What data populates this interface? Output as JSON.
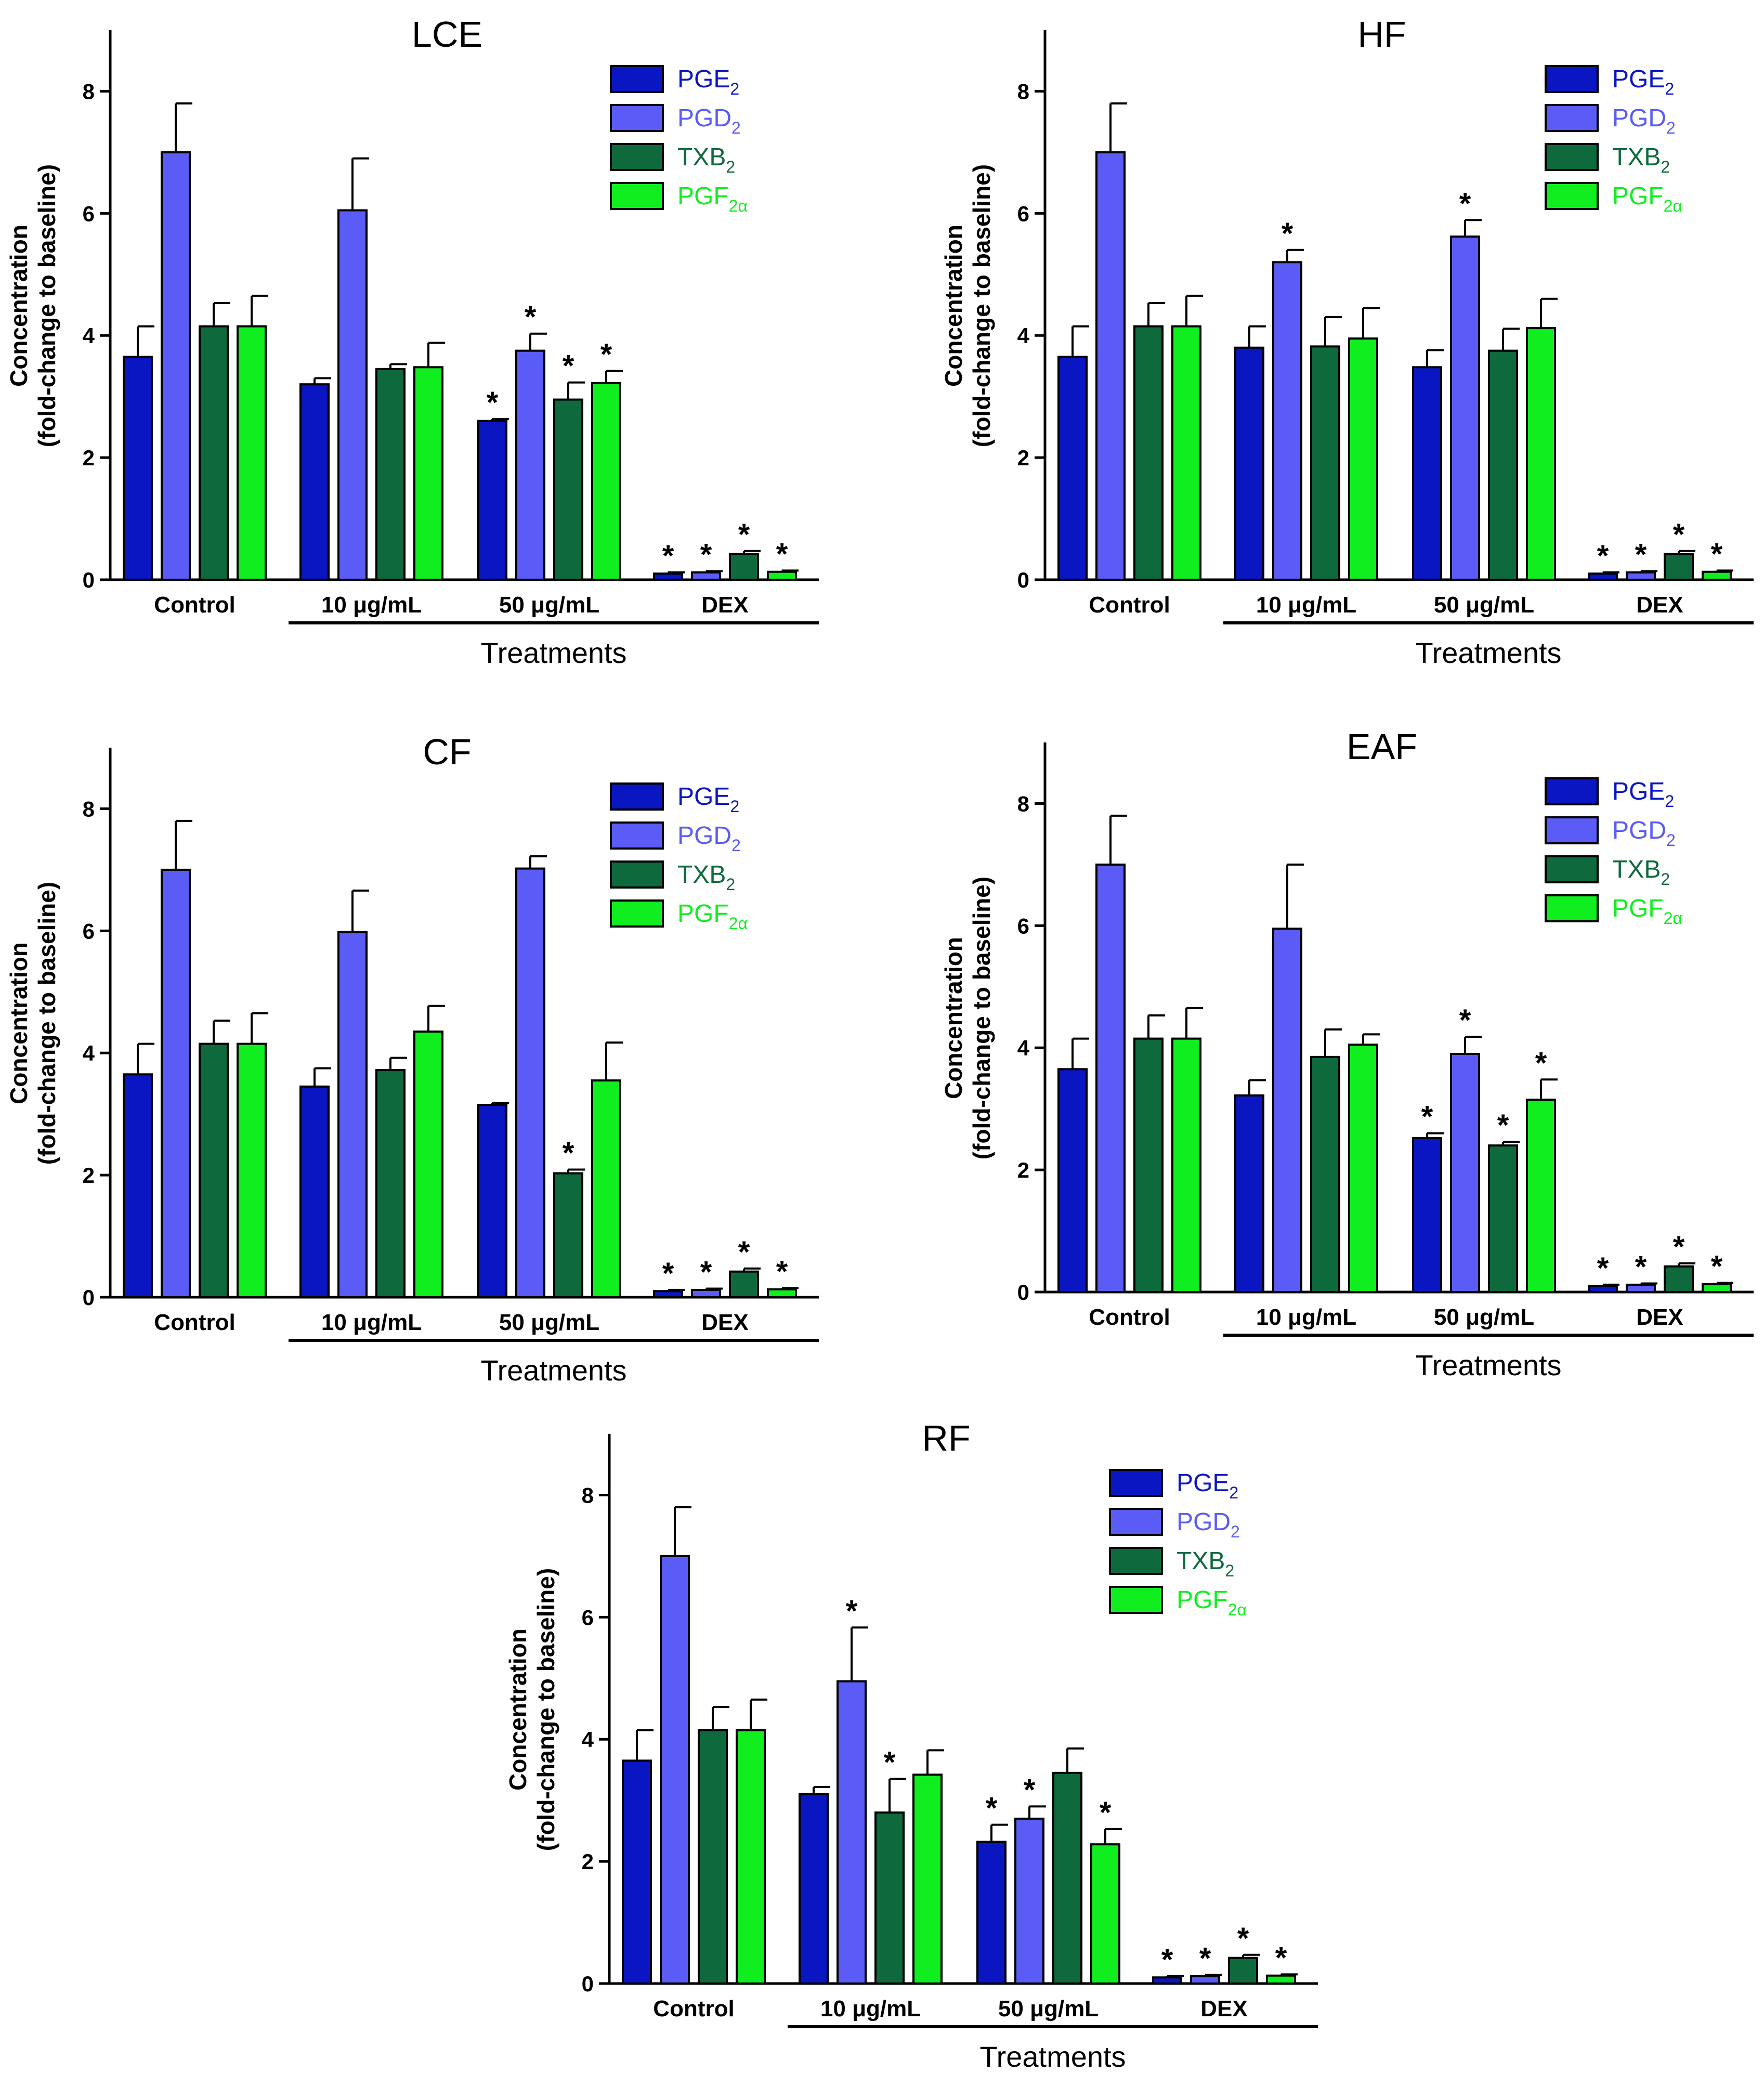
{
  "colors": {
    "PGE2": "#0a16c2",
    "PGD2": "#5a5cf5",
    "TXB2": "#0e6a3c",
    "PGF2a": "#11ee1f",
    "axis": "#000000"
  },
  "legend_entries": [
    {
      "base": "PGE",
      "sub": "2",
      "color_key": "PGE2"
    },
    {
      "base": "PGD",
      "sub": "2",
      "color_key": "PGD2"
    },
    {
      "base": "TXB",
      "sub": "2",
      "color_key": "TXB2"
    },
    {
      "base": "PGF",
      "sub": "2α",
      "color_key": "PGF2a"
    }
  ],
  "chart_data": [
    {
      "type": "bar",
      "title": "LCE",
      "categories": [
        "Control",
        "10 μg/mL",
        "50 μg/mL",
        "DEX"
      ],
      "xlabel": "Treatments",
      "ylabel": [
        "Concentration",
        "(fold-change to baseline)"
      ],
      "ylim": [
        0,
        9
      ],
      "yticks": [
        0,
        2,
        4,
        6,
        8
      ],
      "series": [
        {
          "name": "PGE2",
          "values": [
            3.65,
            3.2,
            2.6,
            0.1
          ],
          "errors": [
            0.5,
            0.1,
            0.03,
            0.02
          ],
          "significant": [
            false,
            false,
            true,
            true
          ]
        },
        {
          "name": "PGD2",
          "values": [
            7.0,
            6.05,
            3.75,
            0.12
          ],
          "errors": [
            0.8,
            0.85,
            0.28,
            0.02
          ],
          "significant": [
            false,
            false,
            true,
            true
          ]
        },
        {
          "name": "TXB2",
          "values": [
            4.15,
            3.45,
            2.95,
            0.42
          ],
          "errors": [
            0.38,
            0.08,
            0.28,
            0.05
          ],
          "significant": [
            false,
            false,
            true,
            true
          ]
        },
        {
          "name": "PGF2α",
          "values": [
            4.15,
            3.48,
            3.22,
            0.13
          ],
          "errors": [
            0.5,
            0.4,
            0.2,
            0.02
          ],
          "significant": [
            false,
            false,
            true,
            true
          ]
        }
      ]
    },
    {
      "type": "bar",
      "title": "HF",
      "categories": [
        "Control",
        "10 μg/mL",
        "50 μg/mL",
        "DEX"
      ],
      "xlabel": "Treatments",
      "ylabel": [
        "Concentration",
        "(fold-change to baseline)"
      ],
      "ylim": [
        0,
        9
      ],
      "yticks": [
        0,
        2,
        4,
        6,
        8
      ],
      "series": [
        {
          "name": "PGE2",
          "values": [
            3.65,
            3.8,
            3.48,
            0.1
          ],
          "errors": [
            0.5,
            0.35,
            0.28,
            0.02
          ],
          "significant": [
            false,
            false,
            false,
            true
          ]
        },
        {
          "name": "PGD2",
          "values": [
            7.0,
            5.2,
            5.62,
            0.12
          ],
          "errors": [
            0.8,
            0.2,
            0.27,
            0.02
          ],
          "significant": [
            false,
            true,
            true,
            true
          ]
        },
        {
          "name": "TXB2",
          "values": [
            4.15,
            3.82,
            3.75,
            0.42
          ],
          "errors": [
            0.38,
            0.48,
            0.36,
            0.05
          ],
          "significant": [
            false,
            false,
            false,
            true
          ]
        },
        {
          "name": "PGF2α",
          "values": [
            4.15,
            3.95,
            4.12,
            0.13
          ],
          "errors": [
            0.5,
            0.5,
            0.48,
            0.02
          ],
          "significant": [
            false,
            false,
            false,
            true
          ]
        }
      ]
    },
    {
      "type": "bar",
      "title": "CF",
      "categories": [
        "Control",
        "10 μg/mL",
        "50 μg/mL",
        "DEX"
      ],
      "xlabel": "Treatments",
      "ylabel": [
        "Concentration",
        "(fold-change to baseline)"
      ],
      "ylim": [
        0,
        9
      ],
      "yticks": [
        0,
        2,
        4,
        6,
        8
      ],
      "series": [
        {
          "name": "PGE2",
          "values": [
            3.65,
            3.45,
            3.15,
            0.1
          ],
          "errors": [
            0.5,
            0.3,
            0.03,
            0.02
          ],
          "significant": [
            false,
            false,
            false,
            true
          ]
        },
        {
          "name": "PGD2",
          "values": [
            7.0,
            5.98,
            7.02,
            0.12
          ],
          "errors": [
            0.8,
            0.68,
            0.2,
            0.02
          ],
          "significant": [
            false,
            false,
            false,
            true
          ]
        },
        {
          "name": "TXB2",
          "values": [
            4.15,
            3.72,
            2.03,
            0.42
          ],
          "errors": [
            0.38,
            0.2,
            0.06,
            0.05
          ],
          "significant": [
            false,
            false,
            true,
            true
          ]
        },
        {
          "name": "PGF2α",
          "values": [
            4.15,
            4.35,
            3.55,
            0.13
          ],
          "errors": [
            0.5,
            0.42,
            0.62,
            0.02
          ],
          "significant": [
            false,
            false,
            false,
            true
          ]
        }
      ]
    },
    {
      "type": "bar",
      "title": "EAF",
      "categories": [
        "Control",
        "10 μg/mL",
        "50 μg/mL",
        "DEX"
      ],
      "xlabel": "Treatments",
      "ylabel": [
        "Concentration",
        "(fold-change to baseline)"
      ],
      "ylim": [
        0,
        9
      ],
      "yticks": [
        0,
        2,
        4,
        6,
        8
      ],
      "series": [
        {
          "name": "PGE2",
          "values": [
            3.65,
            3.22,
            2.52,
            0.1
          ],
          "errors": [
            0.5,
            0.25,
            0.08,
            0.02
          ],
          "significant": [
            false,
            false,
            true,
            true
          ]
        },
        {
          "name": "PGD2",
          "values": [
            7.0,
            5.95,
            3.9,
            0.12
          ],
          "errors": [
            0.8,
            1.05,
            0.28,
            0.02
          ],
          "significant": [
            false,
            false,
            true,
            true
          ]
        },
        {
          "name": "TXB2",
          "values": [
            4.15,
            3.85,
            2.4,
            0.42
          ],
          "errors": [
            0.38,
            0.45,
            0.06,
            0.05
          ],
          "significant": [
            false,
            false,
            true,
            true
          ]
        },
        {
          "name": "PGF2α",
          "values": [
            4.15,
            4.05,
            3.15,
            0.13
          ],
          "errors": [
            0.5,
            0.17,
            0.33,
            0.02
          ],
          "significant": [
            false,
            false,
            true,
            true
          ]
        }
      ]
    },
    {
      "type": "bar",
      "title": "RF",
      "categories": [
        "Control",
        "10 μg/mL",
        "50 μg/mL",
        "DEX"
      ],
      "xlabel": "Treatments",
      "ylabel": [
        "Concentration",
        "(fold-change to baseline)"
      ],
      "ylim": [
        0,
        9
      ],
      "yticks": [
        0,
        2,
        4,
        6,
        8
      ],
      "series": [
        {
          "name": "PGE2",
          "values": [
            3.65,
            3.1,
            2.32,
            0.1
          ],
          "errors": [
            0.5,
            0.12,
            0.28,
            0.02
          ],
          "significant": [
            false,
            false,
            true,
            true
          ]
        },
        {
          "name": "PGD2",
          "values": [
            7.0,
            4.95,
            2.7,
            0.12
          ],
          "errors": [
            0.8,
            0.88,
            0.2,
            0.02
          ],
          "significant": [
            false,
            true,
            true,
            true
          ]
        },
        {
          "name": "TXB2",
          "values": [
            4.15,
            2.8,
            3.45,
            0.42
          ],
          "errors": [
            0.38,
            0.55,
            0.4,
            0.05
          ],
          "significant": [
            false,
            true,
            false,
            true
          ]
        },
        {
          "name": "PGF2α",
          "values": [
            4.15,
            3.42,
            2.28,
            0.13
          ],
          "errors": [
            0.5,
            0.4,
            0.25,
            0.02
          ],
          "significant": [
            false,
            false,
            true,
            true
          ]
        }
      ]
    }
  ]
}
